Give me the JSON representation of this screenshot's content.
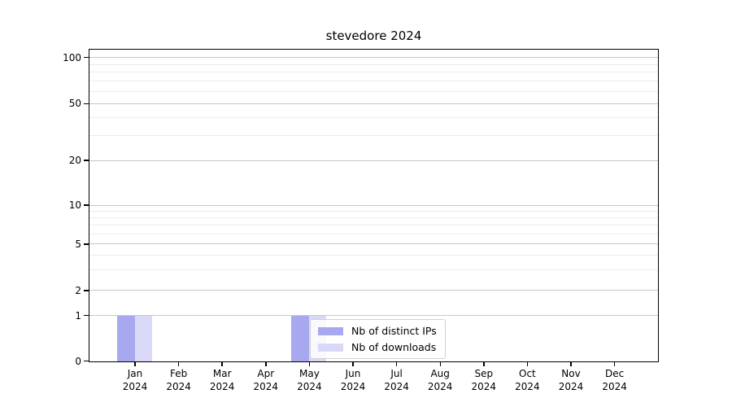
{
  "chart_data": {
    "type": "bar",
    "title": "stevedore 2024",
    "categories": [
      "Jan",
      "Feb",
      "Mar",
      "Apr",
      "May",
      "Jun",
      "Jul",
      "Aug",
      "Sep",
      "Oct",
      "Nov",
      "Dec"
    ],
    "tick_year": "2024",
    "series": [
      {
        "name": "Nb of distinct IPs",
        "color": "#a8a8f0",
        "values": [
          1,
          0,
          0,
          0,
          1,
          0,
          0,
          0,
          0,
          0,
          0,
          0
        ]
      },
      {
        "name": "Nb of downloads",
        "color": "#d9d9f7",
        "values": [
          1,
          0,
          0,
          0,
          1,
          0,
          0,
          0,
          0,
          0,
          0,
          0
        ]
      }
    ],
    "xlabel": "",
    "ylabel": "",
    "yscale": "symlog (linear 0-1, log 1-100)",
    "yticks": [
      0,
      1,
      2,
      5,
      10,
      20,
      50,
      100
    ],
    "minor_yticks": [
      3,
      4,
      6,
      7,
      8,
      9,
      30,
      40,
      60,
      70,
      80,
      90
    ],
    "ylim": [
      0,
      105
    ],
    "grid": "horizontal major and minor",
    "legend_position": "inside lower-center-left"
  }
}
